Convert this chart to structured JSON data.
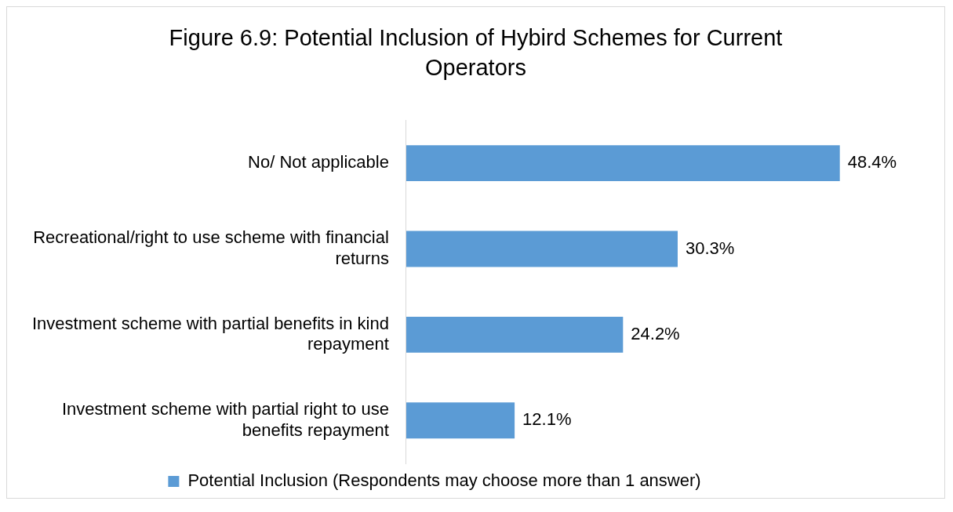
{
  "chart_data": {
    "type": "bar",
    "orientation": "horizontal",
    "title": "Figure 6.9: Potential Inclusion of Hybird Schemes for Current Operators",
    "categories": [
      "No/ Not applicable",
      "Recreational/right to use scheme with financial returns",
      "Investment scheme with partial benefits in kind repayment",
      "Investment scheme with partial right to use benefits repayment"
    ],
    "series": [
      {
        "name": "Potential Inclusion (Respondents may choose more than 1 answer)",
        "color": "#5b9bd5",
        "values": [
          48.4,
          30.3,
          24.2,
          12.1
        ],
        "value_labels": [
          "48.4%",
          "30.3%",
          "24.2%",
          "12.1%"
        ]
      }
    ],
    "legend": "bottom",
    "grid": false
  }
}
